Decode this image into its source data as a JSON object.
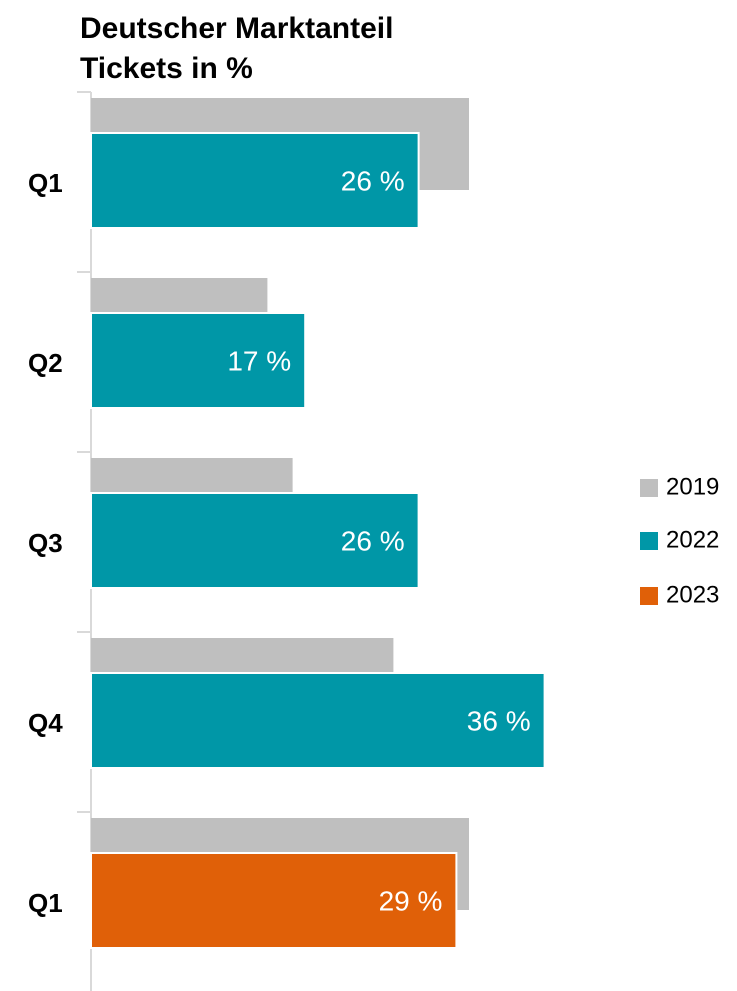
{
  "chart_data": {
    "type": "bar",
    "orientation": "horizontal",
    "title": [
      "Deutscher Marktanteil",
      "Tickets in %"
    ],
    "categories": [
      "Q1",
      "Q2",
      "Q3",
      "Q4",
      "Q1"
    ],
    "series": [
      {
        "name": "2019",
        "color": "#bfbfbf",
        "values": [
          30,
          14,
          16,
          24,
          30
        ]
      },
      {
        "name": "2022",
        "color": "#0097a7",
        "values": [
          26,
          17,
          26,
          36,
          null
        ],
        "value_labels": [
          "26 %",
          "17 %",
          "26 %",
          "36 %",
          null
        ]
      },
      {
        "name": "2023",
        "color": "#e06008",
        "values": [
          null,
          null,
          null,
          null,
          29
        ],
        "value_labels": [
          null,
          null,
          null,
          null,
          "29 %"
        ]
      }
    ],
    "legend": "right"
  }
}
